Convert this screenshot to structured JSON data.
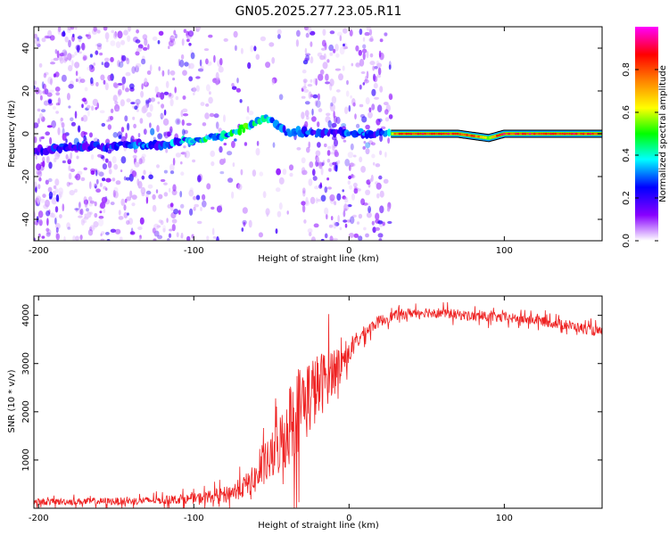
{
  "title": "GN05.2025.277.23.05.R11",
  "chart_data": [
    {
      "type": "heatmap",
      "xlabel": "Height of straight line (km)",
      "ylabel": "Frequency (Hz)",
      "xlim": [
        -203,
        163
      ],
      "ylim": [
        -50,
        50
      ],
      "xticks": [
        -200,
        -100,
        0,
        100
      ],
      "yticks": [
        -40,
        -20,
        0,
        20,
        40
      ],
      "colorbar": {
        "label": "Normalized spectral amplitude",
        "range": [
          0,
          1
        ],
        "ticks": [
          "0.0",
          "0.2",
          "0.4",
          "0.6",
          "0.8"
        ],
        "colors": [
          "#ffffff",
          "#8800ff",
          "#0000ff",
          "#00ffff",
          "#00ff00",
          "#ffff00",
          "#ff8000",
          "#ff0000",
          "#ff00ff"
        ]
      },
      "ridge": {
        "x": [
          -200,
          -180,
          -160,
          -140,
          -120,
          -100,
          -80,
          -70,
          -60,
          -55,
          -50,
          -45,
          -40,
          -30,
          -20,
          -10,
          0,
          10,
          20,
          25,
          30,
          50,
          70,
          80,
          90,
          95,
          100,
          120,
          140,
          163
        ],
        "freq": [
          -8,
          -6,
          -6,
          -5,
          -5,
          -3,
          -1,
          2,
          5,
          8,
          7,
          3,
          1,
          1,
          0,
          0,
          1,
          0,
          0,
          0,
          0,
          0,
          0,
          -1,
          -2,
          -1,
          0,
          0,
          0,
          0
        ],
        "amplitude": [
          0.25,
          0.25,
          0.25,
          0.3,
          0.3,
          0.4,
          0.45,
          0.5,
          0.5,
          0.5,
          0.4,
          0.35,
          0.35,
          0.3,
          0.3,
          0.25,
          0.3,
          0.3,
          0.3,
          0.3,
          0.85,
          0.9,
          0.9,
          0.9,
          0.55,
          0.85,
          0.9,
          0.9,
          0.9,
          0.9
        ]
      }
    },
    {
      "type": "line",
      "xlabel": "Height of straight line (km)",
      "ylabel": "SNR (10 * v/v)",
      "xlim": [
        -203,
        163
      ],
      "ylim": [
        0,
        4400
      ],
      "xticks": [
        -200,
        -100,
        0,
        100
      ],
      "yticks": [
        1000,
        2000,
        3000,
        4000
      ],
      "color": "#ee2222",
      "series": [
        {
          "x": [
            -200,
            -180,
            -160,
            -140,
            -120,
            -100,
            -90,
            -80,
            -70,
            -60,
            -50,
            -45,
            -40,
            -35,
            -30,
            -25,
            -20,
            -15,
            -10,
            -5,
            0,
            5,
            10,
            15,
            20,
            25,
            30,
            40,
            50,
            60,
            80,
            100,
            120,
            140,
            163
          ],
          "y": [
            130,
            140,
            140,
            150,
            170,
            200,
            240,
            290,
            400,
            620,
            1050,
            1300,
            1650,
            1950,
            2200,
            2350,
            2500,
            2700,
            2900,
            3050,
            3200,
            3450,
            3650,
            3780,
            3880,
            3950,
            4000,
            4050,
            4070,
            4050,
            3980,
            3950,
            3900,
            3800,
            3650
          ],
          "noise_amplitude": [
            100,
            100,
            110,
            110,
            120,
            150,
            180,
            220,
            300,
            450,
            700,
            900,
            1200,
            1300,
            1300,
            1200,
            1000,
            900,
            700,
            450,
            300,
            250,
            200,
            180,
            170,
            160,
            150,
            150,
            150,
            150,
            150,
            150,
            150,
            150,
            150
          ]
        }
      ]
    }
  ]
}
